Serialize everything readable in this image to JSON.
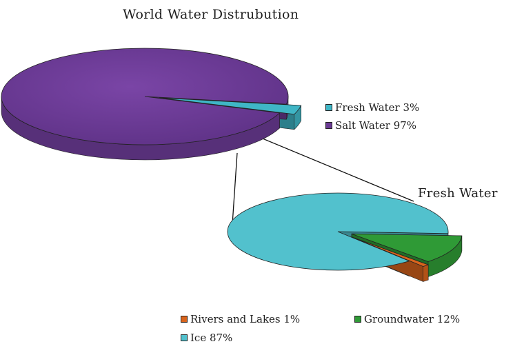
{
  "chart_data": [
    {
      "type": "pie",
      "title": "World Water Distrubution",
      "slices": [
        {
          "label": "Fresh Water",
          "value": 3,
          "legend": "Fresh Water 3%",
          "color": "#3fb6c6"
        },
        {
          "label": "Salt Water",
          "value": 97,
          "legend": "Salt Water 97%",
          "color": "#6a3a93"
        }
      ],
      "legend_position": "right",
      "style": "3d-exploded"
    },
    {
      "type": "pie",
      "title": "Fresh Water",
      "slices": [
        {
          "label": "Ice",
          "value": 87,
          "legend": "Ice 87%",
          "color": "#52c1cd"
        },
        {
          "label": "Groundwater",
          "value": 12,
          "legend": "Groundwater 12%",
          "color": "#2f9a36"
        },
        {
          "label": "Rivers and Lakes",
          "value": 1,
          "legend": "Rivers and Lakes 1%",
          "color": "#d9641c"
        }
      ],
      "legend_position": "bottom",
      "style": "3d-exploded"
    }
  ]
}
